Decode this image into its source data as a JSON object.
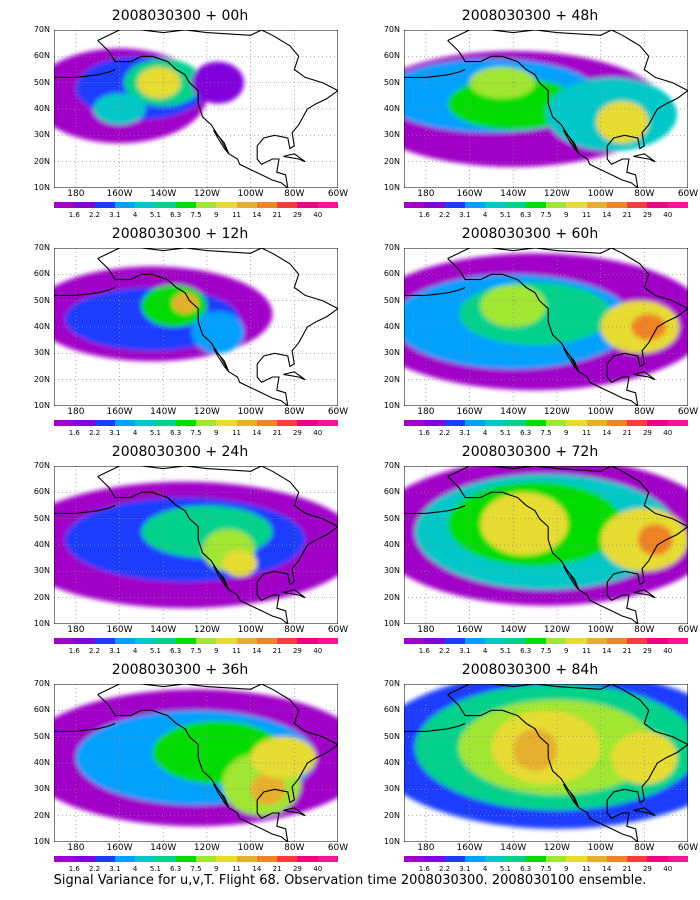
{
  "panels": [
    {
      "title": "2008030300 + 00h"
    },
    {
      "title": "2008030300 + 48h"
    },
    {
      "title": "2008030300 + 12h"
    },
    {
      "title": "2008030300 + 60h"
    },
    {
      "title": "2008030300 + 24h"
    },
    {
      "title": "2008030300 + 72h"
    },
    {
      "title": "2008030300 + 36h"
    },
    {
      "title": "2008030300 + 84h"
    }
  ],
  "y_ticks": [
    "10N",
    "20N",
    "30N",
    "40N",
    "50N",
    "60N",
    "70N"
  ],
  "x_ticks": [
    "180",
    "160W",
    "140W",
    "120W",
    "100W",
    "80W",
    "60W"
  ],
  "colorbar": {
    "labels": [
      "1.6",
      "2.2",
      "3.1",
      "4",
      "5.1",
      "6.3",
      "7.5",
      "9",
      "11",
      "14",
      "21",
      "29",
      "40"
    ],
    "colors": [
      "#a000c8",
      "#8200dc",
      "#1e3cff",
      "#00a0ff",
      "#00c8c8",
      "#00d28c",
      "#00dc00",
      "#a0e632",
      "#e6dc32",
      "#e6af2d",
      "#f08228",
      "#fa3c3c",
      "#f00082"
    ]
  },
  "caption": "Signal Variance for u,v,T. Flight 68. Observation time 2008030300. 2008030100 ensemble."
}
